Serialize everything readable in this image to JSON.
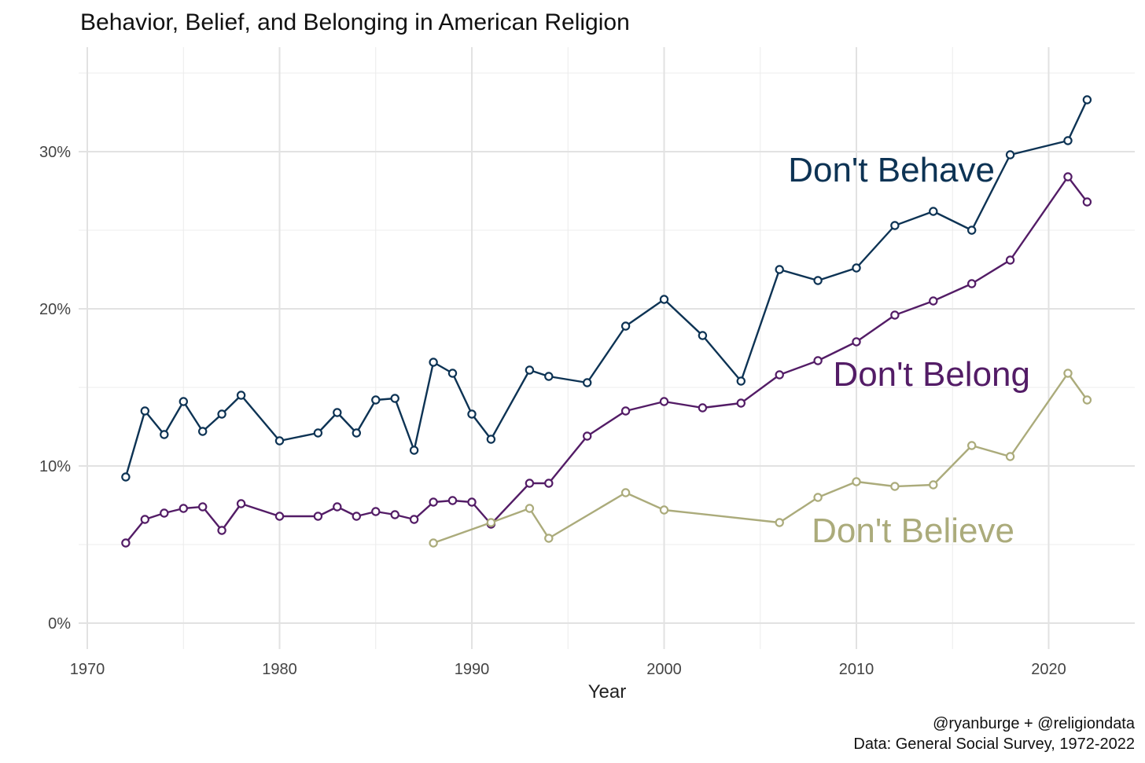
{
  "chart_data": {
    "type": "line",
    "title": "Behavior, Belief, and Belonging in American Religion",
    "xlabel": "Year",
    "ylabel": "",
    "xlim": [
      1970,
      2022
    ],
    "ylim": [
      0,
      0.35
    ],
    "x_ticks": [
      "1970",
      "1980",
      "1990",
      "2000",
      "2010",
      "2020"
    ],
    "y_ticks": [
      "0%",
      "10%",
      "20%",
      "30%"
    ],
    "grid": true,
    "legend": "direct labels",
    "series": [
      {
        "name": "Don't Behave",
        "color": "#0d3354",
        "points": [
          [
            1972,
            0.093
          ],
          [
            1973,
            0.135
          ],
          [
            1974,
            0.12
          ],
          [
            1975,
            0.141
          ],
          [
            1976,
            0.122
          ],
          [
            1977,
            0.133
          ],
          [
            1978,
            0.145
          ],
          [
            1980,
            0.116
          ],
          [
            1982,
            0.121
          ],
          [
            1983,
            0.134
          ],
          [
            1984,
            0.121
          ],
          [
            1985,
            0.142
          ],
          [
            1986,
            0.143
          ],
          [
            1987,
            0.11
          ],
          [
            1988,
            0.166
          ],
          [
            1989,
            0.159
          ],
          [
            1990,
            0.133
          ],
          [
            1991,
            0.117
          ],
          [
            1993,
            0.161
          ],
          [
            1994,
            0.157
          ],
          [
            1996,
            0.153
          ],
          [
            1998,
            0.189
          ],
          [
            2000,
            0.206
          ],
          [
            2002,
            0.183
          ],
          [
            2004,
            0.154
          ],
          [
            2006,
            0.225
          ],
          [
            2008,
            0.218
          ],
          [
            2010,
            0.226
          ],
          [
            2012,
            0.253
          ],
          [
            2014,
            0.262
          ],
          [
            2016,
            0.25
          ],
          [
            2018,
            0.298
          ],
          [
            2021,
            0.307
          ],
          [
            2022,
            0.333
          ]
        ]
      },
      {
        "name": "Don't Belong",
        "color": "#531c66",
        "points": [
          [
            1972,
            0.051
          ],
          [
            1973,
            0.066
          ],
          [
            1974,
            0.07
          ],
          [
            1975,
            0.073
          ],
          [
            1976,
            0.074
          ],
          [
            1977,
            0.059
          ],
          [
            1978,
            0.076
          ],
          [
            1980,
            0.068
          ],
          [
            1982,
            0.068
          ],
          [
            1983,
            0.074
          ],
          [
            1984,
            0.068
          ],
          [
            1985,
            0.071
          ],
          [
            1986,
            0.069
          ],
          [
            1987,
            0.066
          ],
          [
            1988,
            0.077
          ],
          [
            1989,
            0.078
          ],
          [
            1990,
            0.077
          ],
          [
            1991,
            0.063
          ],
          [
            1993,
            0.089
          ],
          [
            1994,
            0.089
          ],
          [
            1996,
            0.119
          ],
          [
            1998,
            0.135
          ],
          [
            2000,
            0.141
          ],
          [
            2002,
            0.137
          ],
          [
            2004,
            0.14
          ],
          [
            2006,
            0.158
          ],
          [
            2008,
            0.167
          ],
          [
            2010,
            0.179
          ],
          [
            2012,
            0.196
          ],
          [
            2014,
            0.205
          ],
          [
            2016,
            0.216
          ],
          [
            2018,
            0.231
          ],
          [
            2021,
            0.284
          ],
          [
            2022,
            0.268
          ]
        ]
      },
      {
        "name": "Don't Believe",
        "color": "#abab7b",
        "points": [
          [
            1988,
            0.051
          ],
          [
            1991,
            0.064
          ],
          [
            1993,
            0.073
          ],
          [
            1994,
            0.054
          ],
          [
            1998,
            0.083
          ],
          [
            2000,
            0.072
          ],
          [
            2006,
            0.064
          ],
          [
            2008,
            0.08
          ],
          [
            2010,
            0.09
          ],
          [
            2012,
            0.087
          ],
          [
            2014,
            0.088
          ],
          [
            2016,
            0.113
          ],
          [
            2018,
            0.106
          ],
          [
            2021,
            0.159
          ],
          [
            2022,
            0.142
          ]
        ]
      }
    ],
    "caption": [
      "@ryanburge + @religiondata",
      "Data: General Social Survey, 1972-2022"
    ]
  }
}
